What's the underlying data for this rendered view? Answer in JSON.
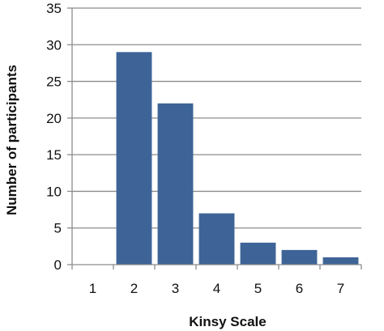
{
  "chart_data": {
    "type": "bar",
    "title": "",
    "xlabel": "Kinsy Scale",
    "ylabel": "Number of participants",
    "categories": [
      "1",
      "2",
      "3",
      "4",
      "5",
      "6",
      "7"
    ],
    "values": [
      0,
      29,
      22,
      7,
      3,
      2,
      1
    ],
    "ylim": [
      0,
      35
    ],
    "yticks": [
      0,
      5,
      10,
      15,
      20,
      25,
      30,
      35
    ],
    "grid": true,
    "legend": "none",
    "bar_color": "#3e6497"
  }
}
